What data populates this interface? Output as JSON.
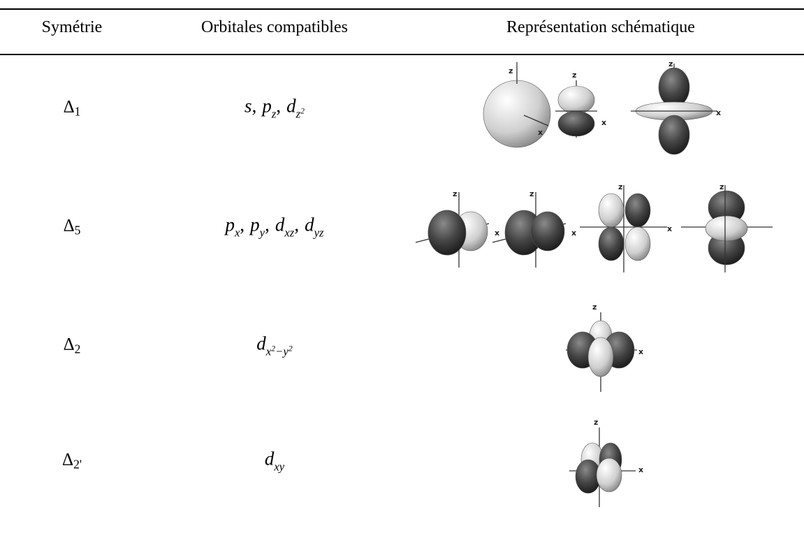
{
  "header": {
    "columns": [
      "Symétrie",
      "Orbitales compatibles",
      "Représentation schématique"
    ]
  },
  "table": {
    "orbital_separator": ",",
    "rows": [
      {
        "symmetry": {
          "letter": "Δ",
          "sub": "1"
        },
        "orbitals": [
          {
            "letter": "s"
          },
          {
            "letter": "p",
            "sub": [
              "z"
            ]
          },
          {
            "letter": "d",
            "sub": [
              "z",
              {
                "sup": "2"
              }
            ]
          }
        ],
        "diagrams": [
          {
            "z": "z",
            "x": "x"
          },
          {
            "z": "z",
            "x": "x"
          },
          {
            "z": "z",
            "x": "x"
          }
        ]
      },
      {
        "symmetry": {
          "letter": "Δ",
          "sub": "5"
        },
        "orbitals": [
          {
            "letter": "p",
            "sub": [
              "x"
            ]
          },
          {
            "letter": "p",
            "sub": [
              "y"
            ]
          },
          {
            "letter": "d",
            "sub": [
              "xz"
            ]
          },
          {
            "letter": "d",
            "sub": [
              "yz"
            ]
          }
        ],
        "diagrams": [
          {
            "z": "z",
            "x": "x"
          },
          {
            "z": "z",
            "x": "x"
          },
          {
            "z": "z",
            "x": "x"
          },
          {
            "z": "z"
          }
        ]
      },
      {
        "symmetry": {
          "letter": "Δ",
          "sub": "2"
        },
        "orbitals": [
          {
            "letter": "d",
            "sub": [
              "x",
              {
                "sup": "2"
              },
              "−y",
              {
                "sup": "2"
              }
            ]
          }
        ],
        "diagrams": [
          {
            "z": "z",
            "x": "x"
          }
        ]
      },
      {
        "symmetry": {
          "letter": "Δ",
          "sub": "2'"
        },
        "orbitals": [
          {
            "letter": "d",
            "sub": [
              "xy"
            ]
          }
        ],
        "diagrams": [
          {
            "z": "z",
            "x": "x"
          }
        ]
      }
    ]
  }
}
